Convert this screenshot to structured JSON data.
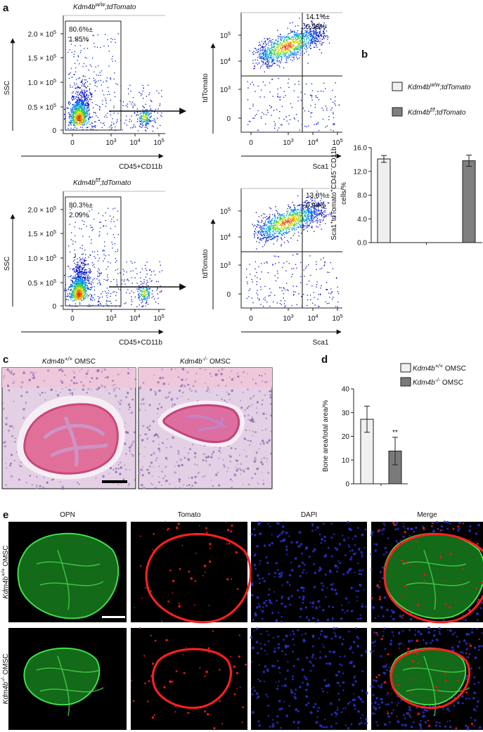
{
  "panel_labels": [
    "a",
    "b",
    "c",
    "d",
    "e"
  ],
  "flow": {
    "rows": [
      {
        "title": [
          {
            "text": "Kdm4b",
            "italic": true
          },
          {
            "text": "w/w",
            "sup": true,
            "italic": true
          },
          {
            "text": ";tdTomato",
            "italic": true
          }
        ],
        "ssc": {
          "gate": [
            "80.6%±",
            "1.85%"
          ],
          "xlabel": "CD45+CD11b",
          "ylabel": "SSC",
          "yticks": [
            [
              {
                "text": "0"
              }
            ],
            [
              {
                "text": "0.5 × 10"
              },
              {
                "text": "5",
                "sup": true
              }
            ],
            [
              {
                "text": "1.0 × 10"
              },
              {
                "text": "5",
                "sup": true
              }
            ],
            [
              {
                "text": "1.5 × 10"
              },
              {
                "text": "5",
                "sup": true
              }
            ],
            [
              {
                "text": "2.0 × 10"
              },
              {
                "text": "5",
                "sup": true
              }
            ]
          ],
          "xticks": [
            [
              {
                "text": "0"
              }
            ],
            [
              {
                "text": "10"
              },
              {
                "text": "3",
                "sup": true
              }
            ],
            [
              {
                "text": "10"
              },
              {
                "text": "4",
                "sup": true
              }
            ],
            [
              {
                "text": "10"
              },
              {
                "text": "5",
                "sup": true
              }
            ]
          ]
        },
        "tomato": {
          "gate": [
            "14.1%±",
            "0.58%"
          ],
          "xlabel": "Sca1",
          "ylabel": "tdTomato",
          "yticks": [
            [
              {
                "text": "0"
              }
            ],
            [
              {
                "text": "10"
              },
              {
                "text": "3",
                "sup": true
              }
            ],
            [
              {
                "text": "10"
              },
              {
                "text": "4",
                "sup": true
              }
            ],
            [
              {
                "text": "10"
              },
              {
                "text": "5",
                "sup": true
              }
            ]
          ],
          "xticks": [
            [
              {
                "text": "0"
              }
            ],
            [
              {
                "text": "10"
              },
              {
                "text": "3",
                "sup": true
              }
            ],
            [
              {
                "text": "10"
              },
              {
                "text": "4",
                "sup": true
              }
            ],
            [
              {
                "text": "10"
              },
              {
                "text": "5",
                "sup": true
              }
            ]
          ]
        }
      },
      {
        "title": [
          {
            "text": "Kdm4b",
            "italic": true
          },
          {
            "text": "f/f",
            "sup": true,
            "italic": true
          },
          {
            "text": ";tdTomato",
            "italic": true
          }
        ],
        "ssc": {
          "gate": [
            "80.3%±",
            "2.09%"
          ],
          "xlabel": "CD45+CD11b",
          "ylabel": "SSC",
          "yticks": [
            [
              {
                "text": "0"
              }
            ],
            [
              {
                "text": "0.5 × 10"
              },
              {
                "text": "5",
                "sup": true
              }
            ],
            [
              {
                "text": "1.0 × 10"
              },
              {
                "text": "5",
                "sup": true
              }
            ],
            [
              {
                "text": "1.5 × 10"
              },
              {
                "text": "5",
                "sup": true
              }
            ],
            [
              {
                "text": "2.0 × 10"
              },
              {
                "text": "5",
                "sup": true
              }
            ]
          ],
          "xticks": [
            [
              {
                "text": "0"
              }
            ],
            [
              {
                "text": "10"
              },
              {
                "text": "3",
                "sup": true
              }
            ],
            [
              {
                "text": "10"
              },
              {
                "text": "4",
                "sup": true
              }
            ],
            [
              {
                "text": "10"
              },
              {
                "text": "5",
                "sup": true
              }
            ]
          ]
        },
        "tomato": {
          "gate": [
            "13.8%±",
            "0.94%"
          ],
          "xlabel": "Sca1",
          "ylabel": "tdTomato",
          "yticks": [
            [
              {
                "text": "0"
              }
            ],
            [
              {
                "text": "10"
              },
              {
                "text": "3",
                "sup": true
              }
            ],
            [
              {
                "text": "10"
              },
              {
                "text": "4",
                "sup": true
              }
            ],
            [
              {
                "text": "10"
              },
              {
                "text": "5",
                "sup": true
              }
            ]
          ],
          "xticks": [
            [
              {
                "text": "0"
              }
            ],
            [
              {
                "text": "10"
              },
              {
                "text": "3",
                "sup": true
              }
            ],
            [
              {
                "text": "10"
              },
              {
                "text": "4",
                "sup": true
              }
            ],
            [
              {
                "text": "10"
              },
              {
                "text": "5",
                "sup": true
              }
            ]
          ]
        }
      }
    ]
  },
  "chart_data": [
    {
      "type": "bar",
      "ylabel": [
        {
          "text": "Sca1"
        },
        {
          "text": "+",
          "sup": true
        },
        {
          "text": "tdTomato"
        },
        {
          "text": "+",
          "sup": true
        },
        {
          "text": "CD45"
        },
        {
          "text": "−",
          "sup": true
        },
        {
          "text": "CD11b"
        }
      ],
      "ylabel_line2": "cells/%",
      "categories": [
        null,
        null
      ],
      "values": [
        14.1,
        13.8
      ],
      "errors": [
        0.58,
        0.94
      ],
      "colors": [
        "#efefef",
        "#7f7f7f"
      ],
      "legend": [
        [
          {
            "text": "Kdm4b",
            "italic": true
          },
          {
            "text": "w/w",
            "sup": true,
            "italic": true
          },
          {
            "text": ";tdTomato",
            "italic": true
          }
        ],
        [
          {
            "text": "Kdm4b",
            "italic": true
          },
          {
            "text": "f/f",
            "sup": true,
            "italic": true
          },
          {
            "text": ";tdTomato",
            "italic": true
          }
        ]
      ],
      "ylim": [
        0,
        16
      ],
      "yticks": [
        {
          "value": 0,
          "label": "0.0"
        },
        {
          "value": 4,
          "label": "4.0"
        },
        {
          "value": 8,
          "label": "8.0"
        },
        {
          "value": 12,
          "label": "12.0"
        },
        {
          "value": 16,
          "label": "16.0"
        }
      ]
    },
    {
      "type": "bar",
      "ylabel": [
        {
          "text": "Bone area/total area/%"
        }
      ],
      "categories": [
        null,
        null
      ],
      "values": [
        27.2,
        13.8
      ],
      "errors": [
        5.5,
        5.8
      ],
      "value_annotations": [
        null,
        "**"
      ],
      "colors": [
        "#f0f0f0",
        "#7a7a7a"
      ],
      "legend": [
        [
          {
            "text": "Kdm4b",
            "italic": true
          },
          {
            "text": "+/+",
            "sup": true,
            "italic": true
          },
          {
            "text": " OMSC"
          }
        ],
        [
          {
            "text": "Kdm4b",
            "italic": true
          },
          {
            "text": "-/-",
            "sup": true,
            "italic": true
          },
          {
            "text": " OMSC"
          }
        ]
      ],
      "ylim": [
        0,
        40
      ],
      "yticks": [
        0,
        10,
        20,
        30,
        40
      ]
    }
  ],
  "histology": {
    "labels": [
      [
        {
          "text": "Kdm4b",
          "italic": true
        },
        {
          "text": "+/+",
          "sup": true,
          "italic": true
        },
        {
          "text": " OMSC"
        }
      ],
      [
        {
          "text": "Kdm4b",
          "italic": true
        },
        {
          "text": "-/-",
          "sup": true,
          "italic": true
        },
        {
          "text": " OMSC"
        }
      ]
    ]
  },
  "fluorescence": {
    "channels": [
      "OPN",
      "Tomato",
      "DAPI",
      "Merge"
    ],
    "channel_colors": [
      "#22dd44",
      "#ee2222",
      "#3344ee",
      "#111111"
    ],
    "rows": [
      [
        {
          "text": "Kdm4b",
          "italic": true
        },
        {
          "text": "+/+",
          "sup": true,
          "italic": true
        },
        {
          "text": " OMSC"
        }
      ],
      [
        {
          "text": "Kdm4b",
          "italic": true
        },
        {
          "text": "-/-",
          "sup": true,
          "italic": true
        },
        {
          "text": " OMSC"
        }
      ]
    ]
  }
}
